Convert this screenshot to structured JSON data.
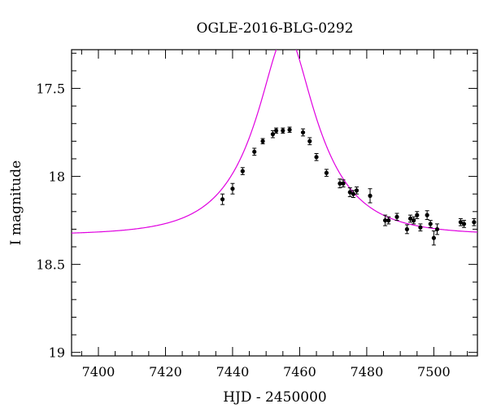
{
  "chart_data": {
    "type": "scatter",
    "title": "OGLE-2016-BLG-0292",
    "xlabel": "HJD - 2450000",
    "ylabel": "I magnitude",
    "xlim": [
      7392,
      7513
    ],
    "ylim": [
      19.02,
      17.28
    ],
    "y_inverted": true,
    "grid": false,
    "legend": "none",
    "x_ticks": [
      7400,
      7420,
      7440,
      7460,
      7480,
      7500
    ],
    "x_tick_labels": [
      "7400",
      "7420",
      "7440",
      "7460",
      "7480",
      "7500"
    ],
    "y_ticks": [
      17.5,
      18,
      18.5,
      19
    ],
    "y_tick_labels": [
      "17.5",
      "18",
      "18.5",
      "19"
    ],
    "series": [
      {
        "type": "scatter_with_errorbars",
        "color": "#000000",
        "points": [
          {
            "x": 7437,
            "y": 18.13,
            "err": 0.03
          },
          {
            "x": 7440,
            "y": 18.07,
            "err": 0.03
          },
          {
            "x": 7443,
            "y": 17.97,
            "err": 0.02
          },
          {
            "x": 7446.5,
            "y": 17.86,
            "err": 0.02
          },
          {
            "x": 7449,
            "y": 17.8,
            "err": 0.015
          },
          {
            "x": 7452,
            "y": 17.76,
            "err": 0.02
          },
          {
            "x": 7453,
            "y": 17.74,
            "err": 0.015
          },
          {
            "x": 7455,
            "y": 17.74,
            "err": 0.015
          },
          {
            "x": 7457,
            "y": 17.735,
            "err": 0.015
          },
          {
            "x": 7461,
            "y": 17.75,
            "err": 0.02
          },
          {
            "x": 7463,
            "y": 17.8,
            "err": 0.02
          },
          {
            "x": 7465,
            "y": 17.89,
            "err": 0.02
          },
          {
            "x": 7468,
            "y": 17.98,
            "err": 0.02
          },
          {
            "x": 7472,
            "y": 18.04,
            "err": 0.025
          },
          {
            "x": 7473,
            "y": 18.04,
            "err": 0.02
          },
          {
            "x": 7475,
            "y": 18.09,
            "err": 0.025
          },
          {
            "x": 7476,
            "y": 18.1,
            "err": 0.02
          },
          {
            "x": 7477,
            "y": 18.08,
            "err": 0.02
          },
          {
            "x": 7481,
            "y": 18.11,
            "err": 0.04
          },
          {
            "x": 7485.5,
            "y": 18.25,
            "err": 0.03
          },
          {
            "x": 7486.5,
            "y": 18.25,
            "err": 0.02
          },
          {
            "x": 7489,
            "y": 18.23,
            "err": 0.02
          },
          {
            "x": 7492,
            "y": 18.3,
            "err": 0.025
          },
          {
            "x": 7493,
            "y": 18.24,
            "err": 0.02
          },
          {
            "x": 7494,
            "y": 18.25,
            "err": 0.02
          },
          {
            "x": 7495,
            "y": 18.22,
            "err": 0.02
          },
          {
            "x": 7496,
            "y": 18.29,
            "err": 0.02
          },
          {
            "x": 7498,
            "y": 18.22,
            "err": 0.025
          },
          {
            "x": 7499,
            "y": 18.27,
            "err": 0.02
          },
          {
            "x": 7500,
            "y": 18.35,
            "err": 0.04
          },
          {
            "x": 7501,
            "y": 18.3,
            "err": 0.03
          },
          {
            "x": 7508,
            "y": 18.26,
            "err": 0.02
          },
          {
            "x": 7509,
            "y": 18.27,
            "err": 0.02
          },
          {
            "x": 7512,
            "y": 18.26,
            "err": 0.02
          }
        ]
      },
      {
        "type": "line",
        "color": "#e000e0",
        "model": "paczynski",
        "params": {
          "t0": 7456,
          "u0": 0.343,
          "tE": 19,
          "mbase": 18.333,
          "fs": 0.914
        }
      }
    ]
  }
}
